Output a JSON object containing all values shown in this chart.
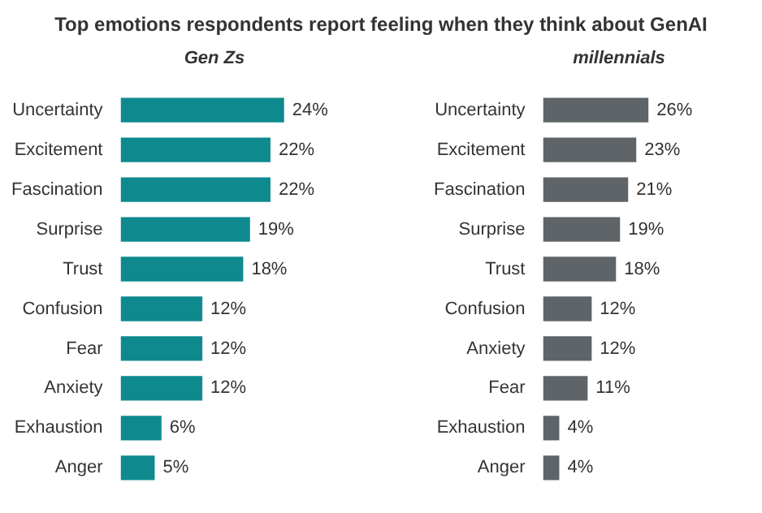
{
  "chart_data": [
    {
      "type": "bar",
      "orientation": "horizontal",
      "title": "Top emotions respondents report feeling when they think about GenAI",
      "subtitle": "Gen Zs",
      "categories": [
        "Uncertainty",
        "Excitement",
        "Fascination",
        "Surprise",
        "Trust",
        "Confusion",
        "Fear",
        "Anxiety",
        "Exhaustion",
        "Anger"
      ],
      "values": [
        24,
        22,
        22,
        19,
        18,
        12,
        12,
        12,
        6,
        5
      ],
      "value_labels": [
        "24%",
        "22%",
        "22%",
        "19%",
        "18%",
        "12%",
        "12%",
        "12%",
        "6%",
        "5%"
      ],
      "color": "#0e8a8e",
      "grid": false,
      "legend": false
    },
    {
      "type": "bar",
      "orientation": "horizontal",
      "subtitle": "millennials",
      "categories": [
        "Uncertainty",
        "Excitement",
        "Fascination",
        "Surprise",
        "Trust",
        "Confusion",
        "Anxiety",
        "Fear",
        "Exhaustion",
        "Anger"
      ],
      "values": [
        26,
        23,
        21,
        19,
        18,
        12,
        12,
        11,
        4,
        4
      ],
      "value_labels": [
        "26%",
        "23%",
        "21%",
        "19%",
        "18%",
        "12%",
        "12%",
        "11%",
        "4%",
        "4%"
      ],
      "color": "#5f6468",
      "grid": false,
      "legend": false
    }
  ]
}
